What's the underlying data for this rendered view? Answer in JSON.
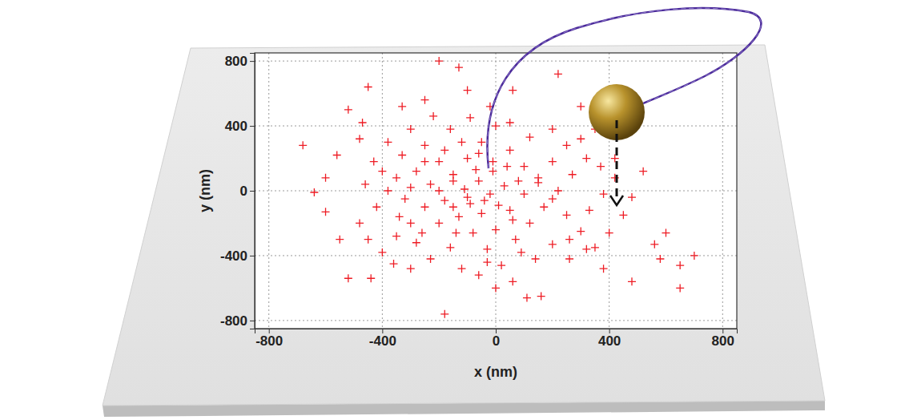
{
  "chart_data": {
    "type": "scatter",
    "xlabel": "x (nm)",
    "ylabel": "y (nm)",
    "color": "#ee1c24",
    "marker": "plus",
    "grid": true,
    "xlim": [
      -850,
      850
    ],
    "ylim": [
      -850,
      850
    ],
    "xticks": [
      -800,
      -400,
      0,
      400,
      800
    ],
    "yticks": [
      -800,
      -400,
      0,
      400,
      800
    ],
    "x": [
      -180,
      650,
      -450,
      -200,
      -130,
      -680,
      700,
      650,
      -600,
      -640,
      -600,
      -520,
      -470,
      560,
      580,
      480,
      -520,
      -440,
      110,
      160,
      220,
      -430,
      600,
      -400,
      -350,
      -300,
      -250,
      -200,
      -150,
      -100,
      -50,
      0,
      50,
      100,
      150,
      200,
      250,
      300,
      350,
      -380,
      -330,
      -280,
      -230,
      -180,
      -130,
      -80,
      -30,
      20,
      70,
      120,
      170,
      220,
      270,
      320,
      -300,
      -250,
      -200,
      -150,
      -100,
      -50,
      0,
      50,
      100,
      150,
      200,
      250,
      -420,
      -380,
      -350,
      -320,
      -280,
      -230,
      -160,
      -120,
      -60,
      0,
      60,
      140,
      200,
      260,
      330,
      380,
      420,
      370,
      300,
      200,
      120,
      50,
      -20,
      -90,
      -160,
      -220,
      -60,
      -20,
      30,
      -110,
      -70,
      -10,
      80,
      -150,
      -90,
      -40,
      10,
      60,
      -200,
      -140,
      -260,
      -300,
      -250,
      -180,
      -120,
      -60,
      -10,
      40,
      -340,
      -400,
      -460,
      -480,
      -450,
      -360,
      -300,
      260,
      320,
      400,
      450,
      480,
      420,
      350,
      -550,
      -560,
      520,
      380,
      -30,
      90,
      -250,
      -330,
      60,
      -100,
      300,
      -480
    ],
    "values": [
      -760,
      -600,
      640,
      800,
      760,
      280,
      -400,
      -460,
      -130,
      -10,
      80,
      500,
      420,
      -330,
      -420,
      -560,
      -540,
      -540,
      -660,
      -650,
      720,
      180,
      -260,
      -380,
      -280,
      -200,
      -100,
      0,
      100,
      200,
      300,
      400,
      250,
      150,
      50,
      -50,
      -150,
      -250,
      -350,
      300,
      220,
      120,
      40,
      -60,
      -160,
      -260,
      -360,
      -460,
      -300,
      -200,
      -100,
      0,
      100,
      200,
      380,
      280,
      180,
      60,
      -40,
      -140,
      -240,
      -120,
      -20,
      80,
      180,
      280,
      -100,
      0,
      80,
      -50,
      -320,
      -420,
      -350,
      -480,
      -520,
      -600,
      -560,
      -420,
      -330,
      -420,
      -120,
      -20,
      80,
      150,
      320,
      380,
      330,
      420,
      520,
      450,
      380,
      460,
      60,
      -20,
      30,
      10,
      130,
      120,
      60,
      -100,
      -80,
      -60,
      -90,
      -180,
      -200,
      -260,
      -260,
      20,
      180,
      250,
      300,
      230,
      180,
      150,
      -160,
      120,
      40,
      -200,
      -300,
      -450,
      -480,
      -300,
      -360,
      -260,
      -150,
      -40,
      200,
      380,
      -300,
      220,
      120,
      -480,
      -440,
      -380,
      560,
      520,
      620,
      620,
      520,
      320
    ]
  }
}
